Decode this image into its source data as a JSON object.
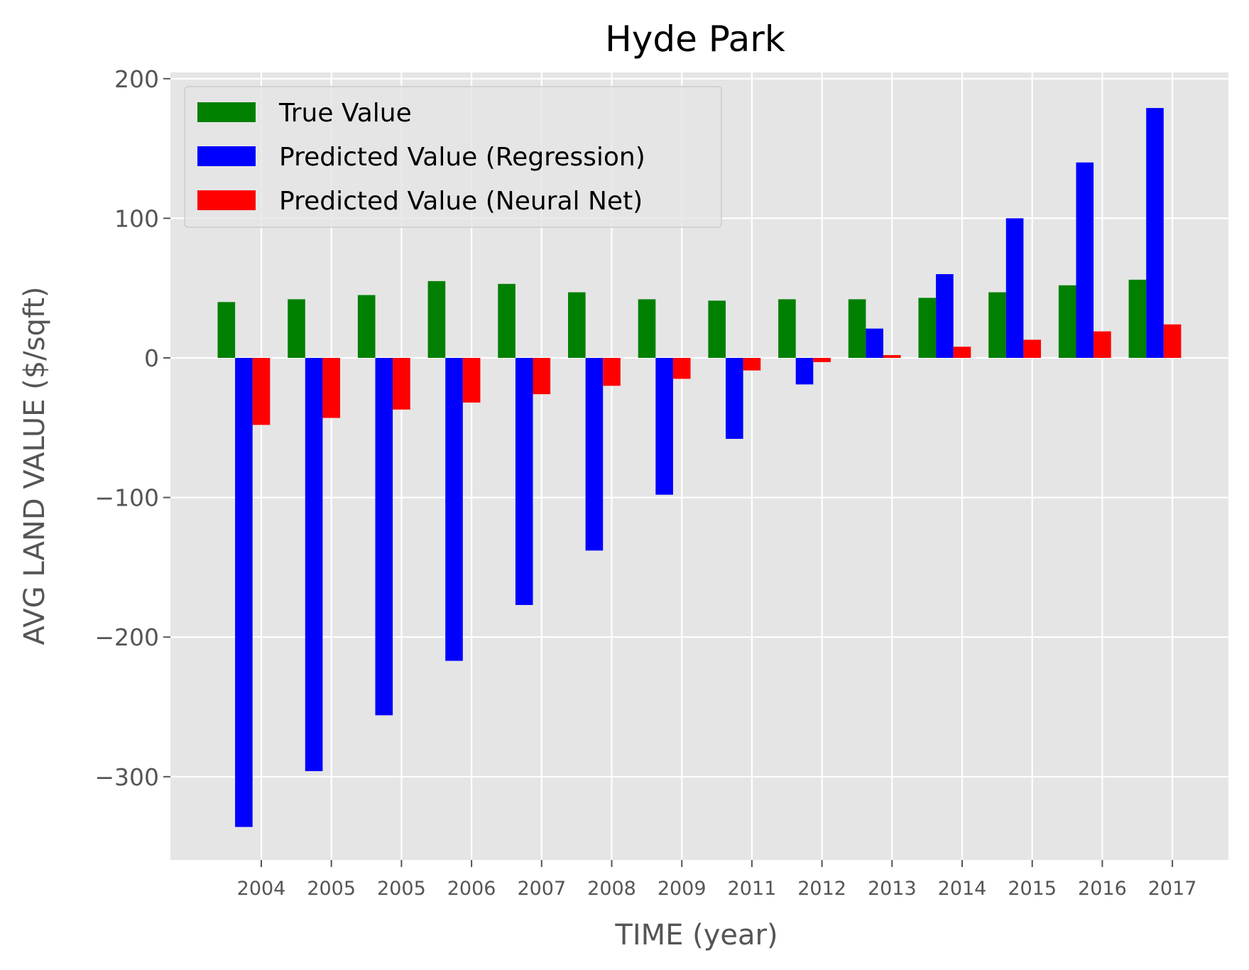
{
  "chart_data": {
    "type": "bar",
    "title": "Hyde Park",
    "xlabel": "TIME (year)",
    "ylabel": "AVG LAND VALUE ($/sqft)",
    "categories": [
      "2004",
      "2005",
      "2005",
      "2006",
      "2007",
      "2008",
      "2009",
      "2011",
      "2012",
      "2013",
      "2014",
      "2015",
      "2016",
      "2017"
    ],
    "series": [
      {
        "name": "True Value",
        "color": "#008000",
        "values": [
          40,
          42,
          45,
          55,
          53,
          47,
          42,
          41,
          42,
          42,
          43,
          47,
          52,
          56
        ]
      },
      {
        "name": "Predicted Value (Regression)",
        "color": "#0000ff",
        "values": [
          -336,
          -296,
          -256,
          -217,
          -177,
          -138,
          -98,
          -58,
          -19,
          21,
          60,
          100,
          140,
          179
        ]
      },
      {
        "name": "Predicted Value (Neural Net)",
        "color": "#ff0000",
        "values": [
          -48,
          -43,
          -37,
          -32,
          -26,
          -20,
          -15,
          -9,
          -3,
          2,
          8,
          13,
          19,
          24
        ]
      }
    ],
    "yticks": [
      200,
      100,
      0,
      -100,
      -200,
      -300
    ],
    "ylim": [
      -360,
      205
    ],
    "grid": true,
    "legend_position": "top-left",
    "plot_background": "#e5e5e5"
  }
}
